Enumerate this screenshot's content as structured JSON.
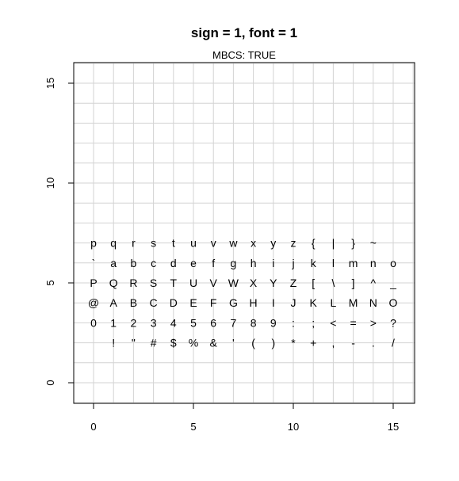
{
  "chart_data": {
    "type": "scatter",
    "title": "sign = 1, font = 1",
    "subtitle": "MBCS: TRUE",
    "xlabel": "",
    "ylabel": "",
    "xlim": [
      -1,
      16
    ],
    "ylim": [
      -1,
      16
    ],
    "xticks": [
      0,
      5,
      10,
      15
    ],
    "yticks": [
      0,
      5,
      10,
      15
    ],
    "x_tick_labels": [
      "0",
      "5",
      "10",
      "15"
    ],
    "y_tick_labels": [
      "0",
      "5",
      "10",
      "15"
    ],
    "grid": true,
    "grid_color": "#d3d3d3",
    "rows": [
      {
        "y": 2,
        "chars": [
          " ",
          "!",
          "\"",
          "#",
          "$",
          "%",
          "&",
          "'",
          "(",
          ")",
          "*",
          "+",
          ",",
          "-",
          ".",
          "/"
        ]
      },
      {
        "y": 3,
        "chars": [
          "0",
          "1",
          "2",
          "3",
          "4",
          "5",
          "6",
          "7",
          "8",
          "9",
          ":",
          ";",
          "<",
          "=",
          ">",
          "?"
        ]
      },
      {
        "y": 4,
        "chars": [
          "@",
          "A",
          "B",
          "C",
          "D",
          "E",
          "F",
          "G",
          "H",
          "I",
          "J",
          "K",
          "L",
          "M",
          "N",
          "O"
        ]
      },
      {
        "y": 5,
        "chars": [
          "P",
          "Q",
          "R",
          "S",
          "T",
          "U",
          "V",
          "W",
          "X",
          "Y",
          "Z",
          "[",
          "\\",
          "]",
          "^",
          "_"
        ]
      },
      {
        "y": 6,
        "chars": [
          "`",
          "a",
          "b",
          "c",
          "d",
          "e",
          "f",
          "g",
          "h",
          "i",
          "j",
          "k",
          "l",
          "m",
          "n",
          "o"
        ]
      },
      {
        "y": 7,
        "chars": [
          "p",
          "q",
          "r",
          "s",
          "t",
          "u",
          "v",
          "w",
          "x",
          "y",
          "z",
          "{",
          "|",
          "}",
          "~",
          ""
        ]
      }
    ]
  }
}
